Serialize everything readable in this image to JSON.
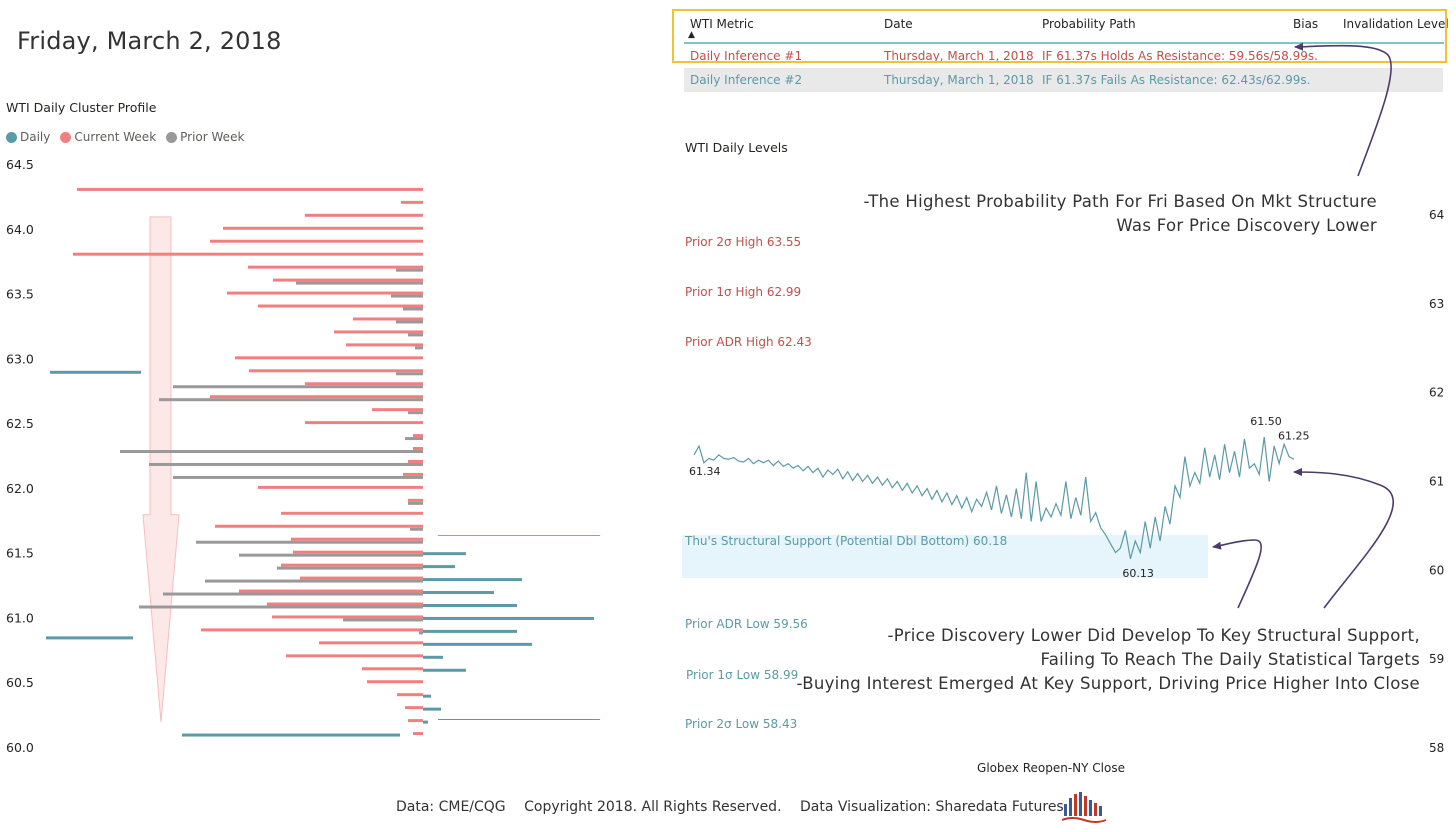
{
  "page": {
    "date_title": "Friday, March 2, 2018",
    "footer": {
      "data_source": "Data: CME/CQG",
      "copyright": "Copyright 2018. All Rights Reserved.",
      "visualization": "Data Visualization: Sharedata Futures"
    }
  },
  "table": {
    "headers": [
      "WTI Metric",
      "Date",
      "Probability Path",
      "Bias",
      "Invalidation Level"
    ],
    "rows": [
      {
        "metric": "Daily Inference #1",
        "date": "Thursday, March 1, 2018",
        "path": "IF 61.37s Holds As Resistance: 59.56s/58.99s.",
        "color": "#c0504d"
      },
      {
        "metric": "Daily Inference #2",
        "date": "Thursday, March 1, 2018",
        "path": "IF 61.37s Fails As Resistance: 62.43s/62.99s.",
        "color": "#5b9aa6"
      }
    ],
    "highlight_color": "#f2c230"
  },
  "annotations": {
    "top": [
      "-The Highest Probability Path For Fri Based On Mkt Structure",
      "Was For Price Discovery Lower"
    ],
    "bottom": [
      "-Price Discovery Lower Did Develop To Key Structural Support,",
      "Failing To Reach The Daily Statistical Targets",
      "-Buying Interest Emerged At Key Support, Driving Price Higher Into Close"
    ]
  },
  "chart_data": [
    {
      "type": "bar",
      "title": "WTI Daily Cluster Profile",
      "legend": [
        {
          "name": "Daily",
          "color": "#5b9aa6"
        },
        {
          "name": "Current Week",
          "color": "#f08080"
        },
        {
          "name": "Prior Week",
          "color": "#999999"
        }
      ],
      "ylim": [
        60.0,
        64.5
      ],
      "yticks": [
        "64.5",
        "64.0",
        "63.5",
        "63.0",
        "62.5",
        "62.0",
        "61.5",
        "61.0",
        "60.5",
        "60.0"
      ],
      "orientation": "horizontal",
      "current_week": [
        [
          64.3,
          346
        ],
        [
          64.2,
          22
        ],
        [
          64.1,
          118
        ],
        [
          64.0,
          200
        ],
        [
          63.9,
          213
        ],
        [
          63.8,
          350
        ],
        [
          63.7,
          175
        ],
        [
          63.6,
          150
        ],
        [
          63.5,
          196
        ],
        [
          63.4,
          165
        ],
        [
          63.3,
          70
        ],
        [
          63.2,
          89
        ],
        [
          63.1,
          77
        ],
        [
          63.0,
          188
        ],
        [
          62.9,
          174
        ],
        [
          62.8,
          118
        ],
        [
          62.7,
          213
        ],
        [
          62.6,
          51
        ],
        [
          62.5,
          118
        ],
        [
          62.4,
          10
        ],
        [
          62.3,
          10
        ],
        [
          62.2,
          15
        ],
        [
          62.1,
          20
        ],
        [
          62.0,
          165
        ],
        [
          61.9,
          15
        ],
        [
          61.8,
          142
        ],
        [
          61.7,
          208
        ],
        [
          61.6,
          132
        ],
        [
          61.5,
          130
        ],
        [
          61.4,
          142
        ],
        [
          61.3,
          123
        ],
        [
          61.2,
          184
        ],
        [
          61.1,
          156
        ],
        [
          61.0,
          151
        ],
        [
          60.9,
          222
        ],
        [
          60.8,
          104
        ],
        [
          60.7,
          137
        ],
        [
          60.6,
          61
        ],
        [
          60.5,
          56
        ],
        [
          60.4,
          26
        ],
        [
          60.3,
          18
        ],
        [
          60.2,
          15
        ],
        [
          60.1,
          10
        ]
      ],
      "prior_week": [
        [
          63.7,
          27
        ],
        [
          63.6,
          127
        ],
        [
          63.5,
          32
        ],
        [
          63.4,
          20
        ],
        [
          63.3,
          27
        ],
        [
          63.2,
          15
        ],
        [
          63.1,
          8
        ],
        [
          62.9,
          27
        ],
        [
          62.8,
          250
        ],
        [
          62.7,
          264
        ],
        [
          62.6,
          15
        ],
        [
          62.4,
          18
        ],
        [
          62.3,
          303
        ],
        [
          62.2,
          274
        ],
        [
          62.1,
          250
        ],
        [
          61.9,
          15
        ],
        [
          61.7,
          13
        ],
        [
          61.6,
          227
        ],
        [
          61.5,
          184
        ],
        [
          61.4,
          146
        ],
        [
          61.3,
          218
        ],
        [
          61.2,
          260
        ],
        [
          61.1,
          284
        ],
        [
          61.0,
          80
        ],
        [
          60.9,
          4
        ]
      ],
      "daily": [
        [
          62.9,
          91
        ],
        [
          61.5,
          43
        ],
        [
          61.4,
          32
        ],
        [
          61.3,
          99
        ],
        [
          61.2,
          71
        ],
        [
          61.1,
          94
        ],
        [
          61.0,
          171
        ],
        [
          60.9,
          94
        ],
        [
          60.8,
          109
        ],
        [
          60.7,
          20
        ],
        [
          60.6,
          43
        ],
        [
          60.4,
          8
        ],
        [
          60.3,
          18
        ],
        [
          60.2,
          5
        ],
        [
          60.1,
          240
        ]
      ],
      "daily_extension_lines": [
        {
          "y": 61.64,
          "color": "#f08080"
        },
        {
          "y": 60.22,
          "color": "#5b9aa6"
        }
      ],
      "arrow": "down",
      "bar_value_unit": "relative volume (unlabeled)"
    },
    {
      "type": "line",
      "title": "WTI Daily Levels",
      "xlabel": "Globex Reopen-NY Close",
      "ylim": [
        58,
        64
      ],
      "yticks": [
        64,
        63,
        62,
        61,
        60,
        59,
        58
      ],
      "levels": [
        {
          "label": "Prior 2σ High 63.55",
          "value": 63.55,
          "color": "#c0504d"
        },
        {
          "label": "Prior 1σ High 62.99",
          "value": 62.99,
          "color": "#c0504d"
        },
        {
          "label": "Prior ADR High 62.43",
          "value": 62.43,
          "color": "#c0504d"
        },
        {
          "label": "Thu's Structural Support (Potential Dbl Bottom) 60.18",
          "value": 60.18,
          "color": "#5b9aa6"
        },
        {
          "label": "Prior ADR Low 59.56",
          "value": 59.56,
          "color": "#5b9aa6"
        },
        {
          "label": "Prior 1σ Low 58.99",
          "value": 58.99,
          "color": "#5b9aa6"
        },
        {
          "label": "Prior 2σ Low 58.43",
          "value": 58.43,
          "color": "#5b9aa6"
        }
      ],
      "data_labels": [
        {
          "text": "61.34",
          "value": 61.34,
          "position": "start"
        },
        {
          "text": "61.50",
          "value": 61.5,
          "position": "high"
        },
        {
          "text": "61.25",
          "value": 61.25,
          "position": "end"
        },
        {
          "text": "60.13",
          "value": 60.13,
          "position": "low"
        }
      ],
      "series": [
        {
          "name": "WTI",
          "color": "#5b9aa6",
          "values": [
            61.3,
            61.4,
            61.21,
            61.26,
            61.24,
            61.3,
            61.26,
            61.25,
            61.27,
            61.23,
            61.22,
            61.26,
            61.2,
            61.24,
            61.21,
            61.24,
            61.18,
            61.23,
            61.17,
            61.2,
            61.15,
            61.18,
            61.12,
            61.17,
            61.1,
            61.15,
            61.05,
            61.13,
            61.08,
            61.14,
            61.03,
            61.11,
            61.01,
            61.09,
            61.0,
            61.07,
            60.98,
            61.05,
            60.96,
            61.03,
            60.93,
            61.0,
            60.9,
            60.98,
            60.87,
            60.95,
            60.84,
            60.92,
            60.8,
            60.9,
            60.77,
            60.87,
            60.74,
            60.84,
            60.7,
            60.82,
            60.66,
            60.8,
            60.72,
            60.88,
            60.68,
            60.95,
            60.64,
            60.85,
            60.6,
            60.92,
            60.58,
            61.1,
            60.55,
            61.0,
            60.55,
            60.7,
            60.6,
            60.75,
            60.62,
            61.0,
            60.58,
            60.82,
            60.62,
            61.05,
            60.55,
            60.65,
            60.48,
            60.4,
            60.3,
            60.2,
            60.25,
            60.45,
            60.13,
            60.33,
            60.2,
            60.55,
            60.25,
            60.6,
            60.33,
            60.72,
            60.52,
            60.95,
            60.82,
            61.28,
            60.95,
            61.1,
            60.98,
            61.38,
            61.05,
            61.3,
            61.02,
            61.42,
            61.1,
            61.34,
            61.05,
            61.48,
            61.15,
            61.2,
            61.08,
            61.5,
            61.0,
            61.4,
            61.2,
            61.42,
            61.28,
            61.25
          ]
        }
      ]
    }
  ]
}
